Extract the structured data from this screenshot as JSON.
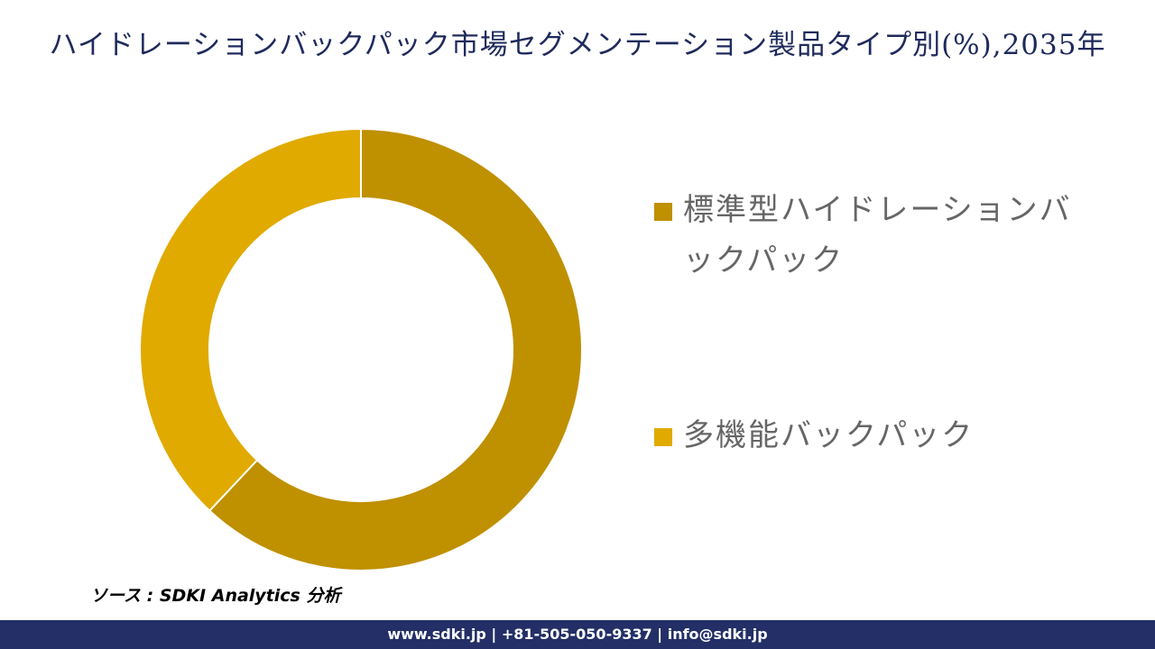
{
  "chart_data": {
    "type": "donut",
    "title": "ハイドレーションバックパック市場セグメンテーション製品タイプ別(%),2035年",
    "categories": [
      "標準型ハイドレーションバックパック",
      "多機能バックパック"
    ],
    "values": [
      62,
      38
    ],
    "colors": [
      "#bf9000",
      "#e0aa00"
    ],
    "source": "ソース : SDKI Analytics 分析",
    "footer": "www.sdki.jp | +81-505-050-9337 | info@sdki.jp"
  }
}
